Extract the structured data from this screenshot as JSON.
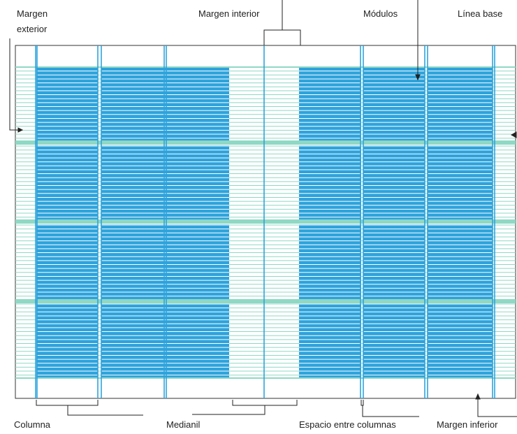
{
  "labels": {
    "outer_margin": "Margen exterior",
    "inner_margin": "Margen interior",
    "modules": "Módulos",
    "baseline": "Línea base",
    "column": "Columna",
    "gutter": "Medianil",
    "column_space": "Espacio entre columnas",
    "bottom_margin": "Margen inferior"
  }
}
